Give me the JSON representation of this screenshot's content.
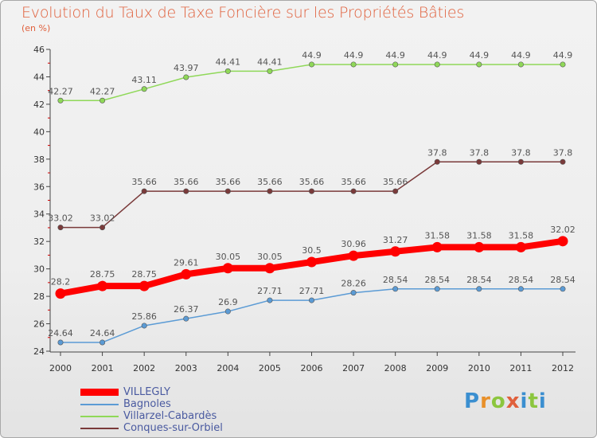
{
  "header": {
    "title": "Evolution du Taux de Taxe Foncière sur les Propriétés Bâties",
    "subtitle": "(en %)"
  },
  "brand": {
    "text": "Proxiti",
    "letter_colors": [
      "#3b8fd0",
      "#e8902a",
      "#8cc63e",
      "#e0603c",
      "#3b8fd0",
      "#8cc63e",
      "#3b8fd0"
    ]
  },
  "chart_data": {
    "type": "line",
    "x": [
      2000,
      2001,
      2002,
      2003,
      2004,
      2005,
      2006,
      2007,
      2008,
      2009,
      2010,
      2011,
      2012
    ],
    "ylim": [
      24,
      46
    ],
    "yticks": [
      24,
      26,
      28,
      30,
      32,
      34,
      36,
      38,
      40,
      42,
      44,
      46
    ],
    "grid": false,
    "legend_position": "bottom-left",
    "series": [
      {
        "name": "VILLEGLY",
        "color": "#ff0000",
        "values": [
          28.2,
          28.75,
          28.75,
          29.61,
          30.05,
          30.05,
          30.5,
          30.96,
          31.27,
          31.58,
          31.58,
          31.58,
          32.02
        ],
        "labels": [
          "28.2",
          "28.75",
          "28.75",
          "29.61",
          "30.05",
          "30.05",
          "30.5",
          "30.96",
          "31.27",
          "31.58",
          "31.58",
          "31.58",
          "32.02"
        ]
      },
      {
        "name": "Bagnoles",
        "color": "#5b9bd5",
        "values": [
          24.64,
          24.64,
          25.86,
          26.37,
          26.9,
          27.71,
          27.71,
          28.26,
          28.54,
          28.54,
          28.54,
          28.54,
          28.54
        ],
        "labels": [
          "24.64",
          "24.64",
          "25.86",
          "26.37",
          "26.9",
          "27.71",
          "27.71",
          "28.26",
          "28.54",
          "28.54",
          "28.54",
          "28.54",
          "28.54"
        ]
      },
      {
        "name": "Villarzel-Cabardès",
        "color": "#8fd858",
        "values": [
          42.27,
          42.27,
          43.11,
          43.97,
          44.41,
          44.41,
          44.9,
          44.9,
          44.9,
          44.9,
          44.9,
          44.9,
          44.9
        ],
        "labels": [
          "42.27",
          "42.27",
          "43.11",
          "43.97",
          "44.41",
          "44.41",
          "44.9",
          "44.9",
          "44.9",
          "44.9",
          "44.9",
          "44.9",
          "44.9"
        ]
      },
      {
        "name": "Conques-sur-Orbiel",
        "color": "#7a3a3a",
        "values": [
          33.02,
          33.02,
          35.66,
          35.66,
          35.66,
          35.66,
          35.66,
          35.66,
          35.66,
          37.8,
          37.8,
          37.8,
          37.8
        ],
        "labels": [
          "33.02",
          "33.02",
          "35.66",
          "35.66",
          "35.66",
          "35.66",
          "35.66",
          "35.66",
          "35.66",
          "37.8",
          "37.8",
          "37.8",
          "37.8"
        ]
      }
    ]
  }
}
